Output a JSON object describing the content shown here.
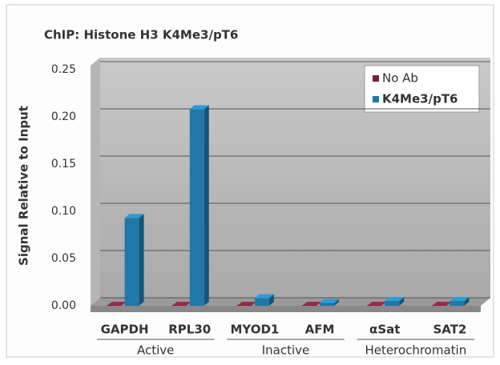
{
  "chart_data": {
    "type": "bar3d",
    "title": "ChIP: Histone H3 K4Me3/pT6",
    "y_label": "Signal Relative to Input",
    "categories": [
      "GAPDH",
      "RPL30",
      "MYOD1",
      "AFM",
      "αSat",
      "SAT2"
    ],
    "group_labels": [
      "Active",
      "Inactive",
      "Heterochromatin"
    ],
    "series": [
      {
        "name": "No Ab",
        "color": "#7a1f3d",
        "values": [
          0,
          0,
          0,
          0,
          0,
          0
        ]
      },
      {
        "name": "K4Me3/pT6",
        "color": "#1f78a8",
        "values": [
          0.093,
          0.208,
          0.008,
          0.003,
          0.005,
          0.005
        ]
      }
    ],
    "ylim": [
      0,
      0.25
    ],
    "yticks": [
      {
        "value": 0,
        "label": "0.00"
      },
      0.05,
      {
        "value": 0.1,
        "label": "0.10"
      },
      0.15,
      {
        "value": 0.2,
        "label": "0.20"
      },
      0.25
    ],
    "grid": true,
    "legend": "upper right"
  }
}
